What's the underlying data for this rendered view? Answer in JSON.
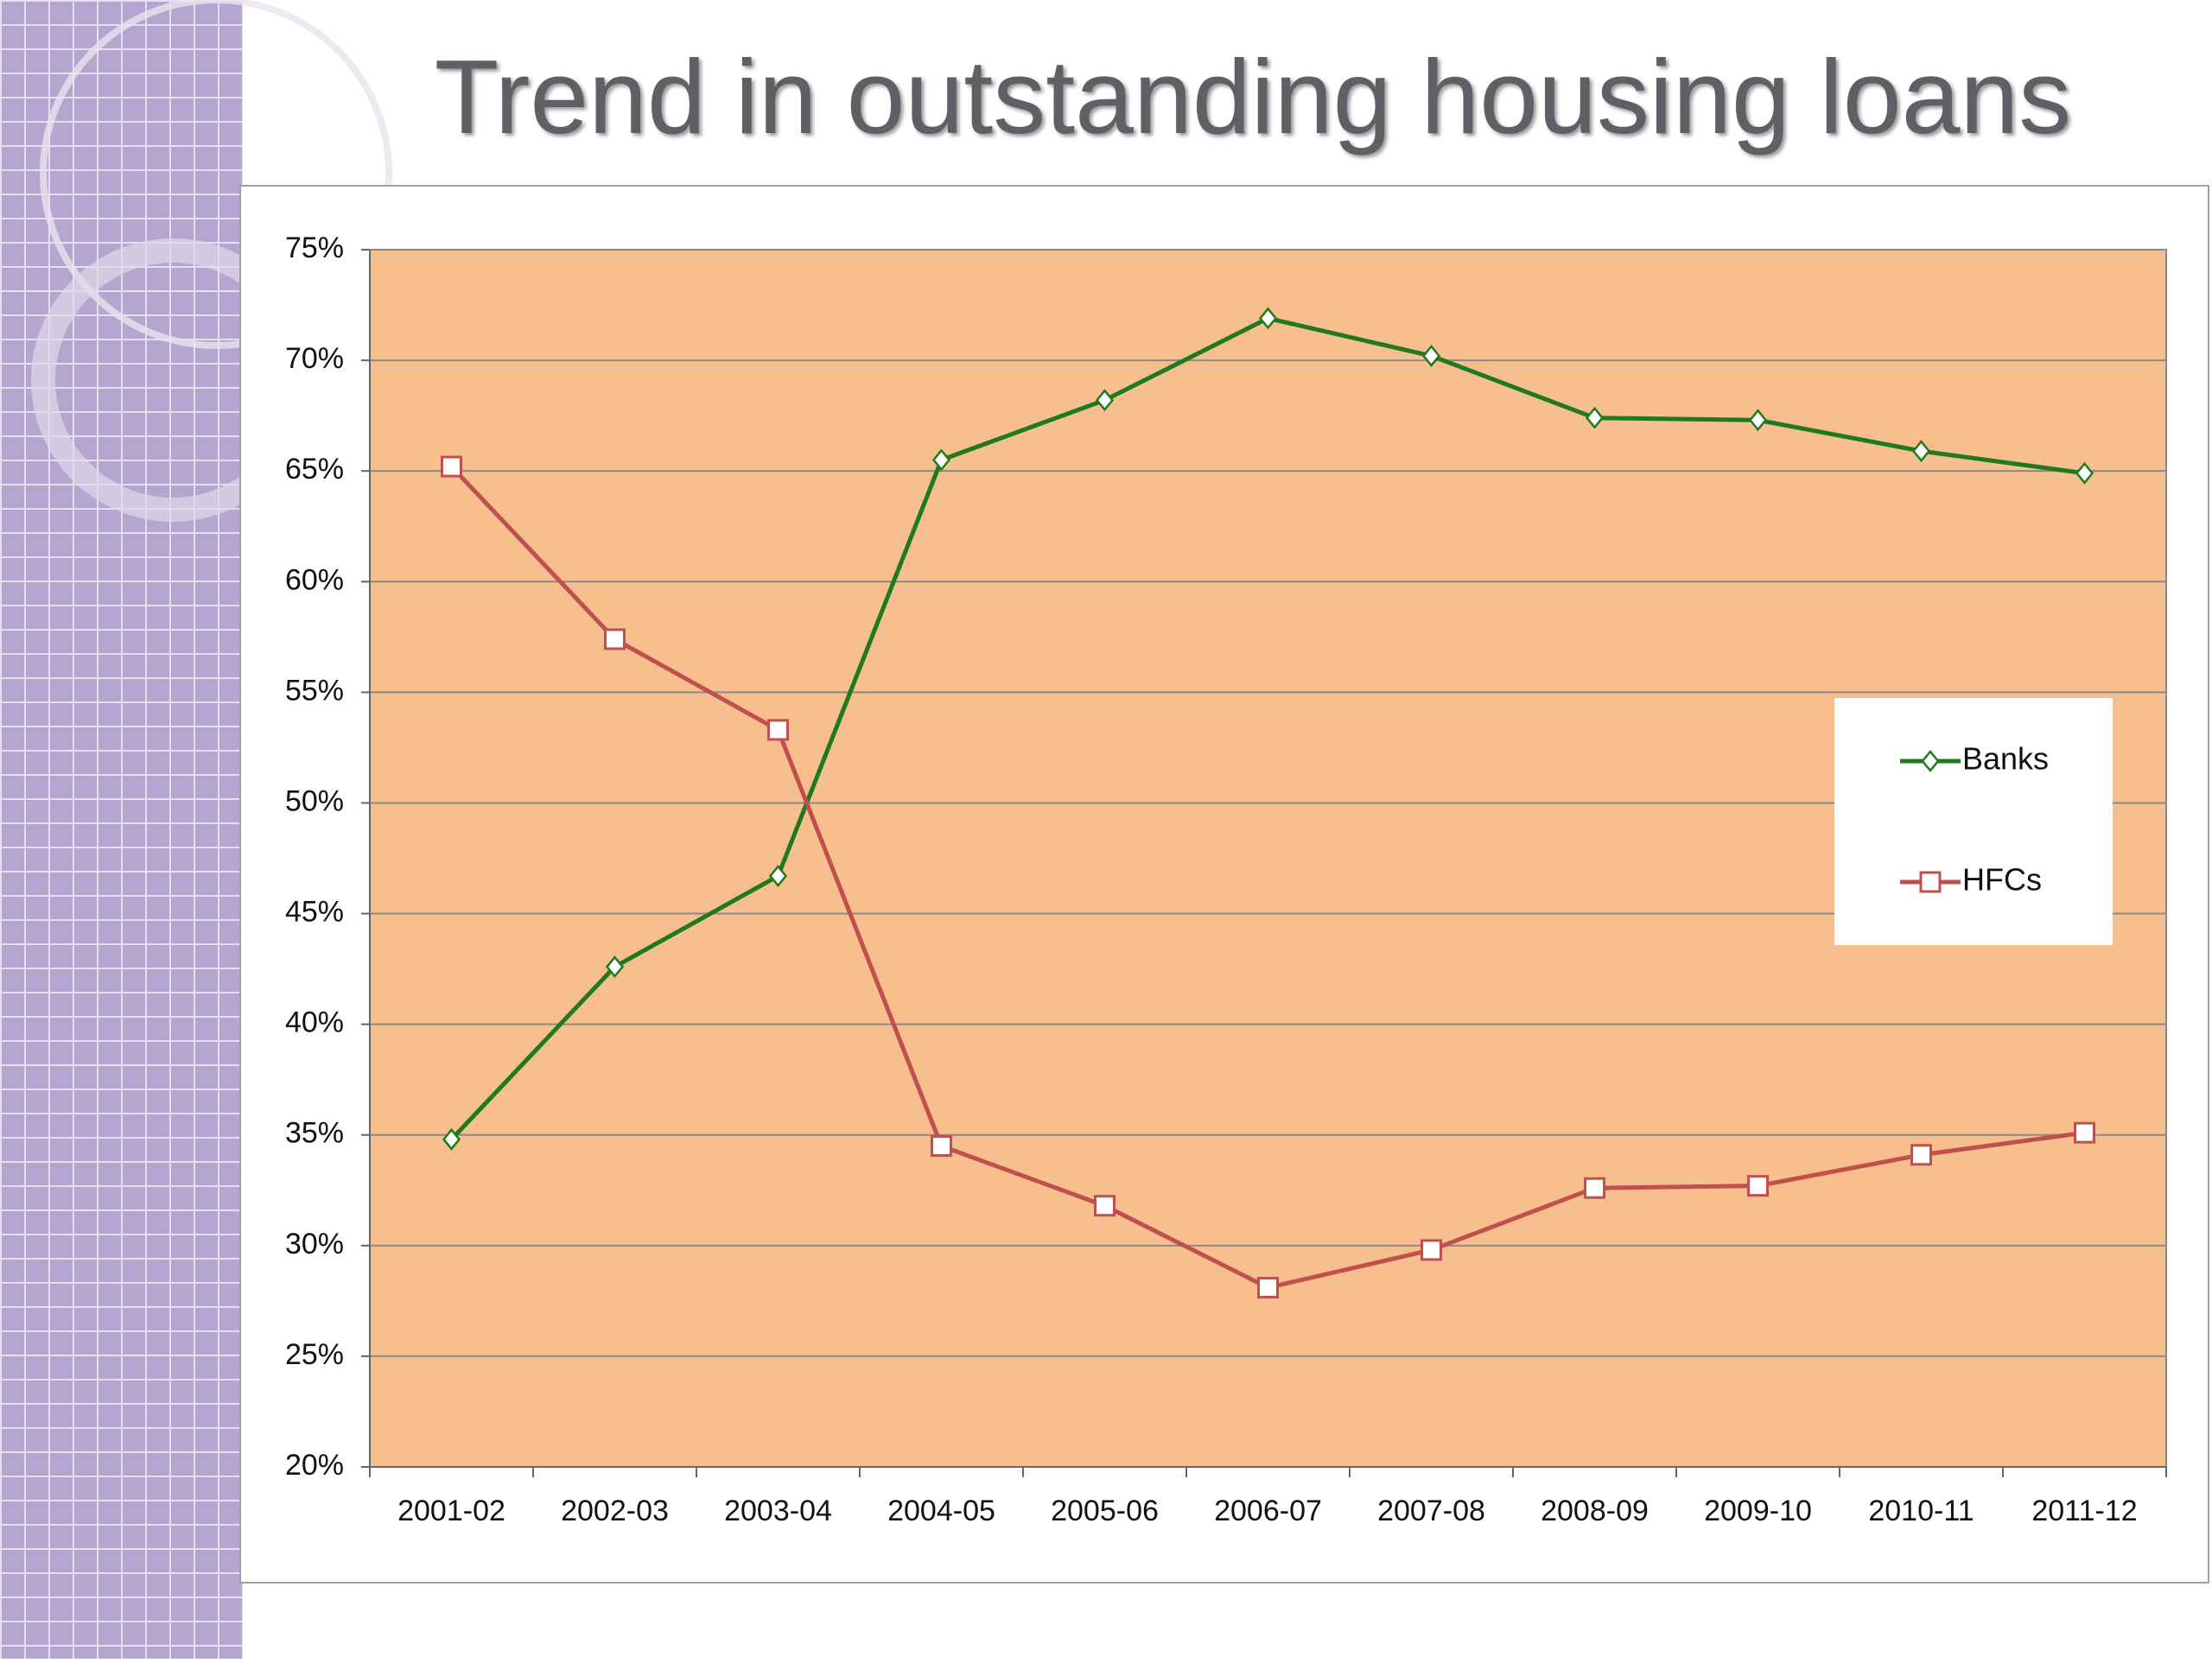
{
  "chart_data": {
    "type": "line",
    "title": "Trend in outstanding housing loans",
    "categories": [
      "2001-02",
      "2002-03",
      "2003-04",
      "2004-05",
      "2005-06",
      "2006-07",
      "2007-08",
      "2008-09",
      "2009-10",
      "2010-11",
      "2011-12"
    ],
    "series": [
      {
        "name": "Banks",
        "color": "#1f7a1f",
        "marker": "diamond",
        "values": [
          34.8,
          42.6,
          46.7,
          65.5,
          68.2,
          71.9,
          70.2,
          67.4,
          67.3,
          65.9,
          64.9
        ]
      },
      {
        "name": "HFCs",
        "color": "#c0504d",
        "marker": "square",
        "values": [
          65.2,
          57.4,
          53.3,
          34.5,
          31.8,
          28.1,
          29.8,
          32.6,
          32.7,
          34.1,
          35.1
        ]
      }
    ],
    "ylim": [
      20,
      75
    ],
    "yticks": [
      {
        "value": 20,
        "label": "20%"
      },
      {
        "value": 25,
        "label": "25%"
      },
      {
        "value": 30,
        "label": "30%"
      },
      {
        "value": 35,
        "label": "35%"
      },
      {
        "value": 40,
        "label": "40%"
      },
      {
        "value": 45,
        "label": "45%"
      },
      {
        "value": 50,
        "label": "50%"
      },
      {
        "value": 55,
        "label": "55%"
      },
      {
        "value": 60,
        "label": "60%"
      },
      {
        "value": 65,
        "label": "65%"
      },
      {
        "value": 70,
        "label": "70%"
      },
      {
        "value": 75,
        "label": "75%"
      }
    ],
    "grid": true,
    "legend": "right",
    "plot_background": "#f7bf8e"
  }
}
